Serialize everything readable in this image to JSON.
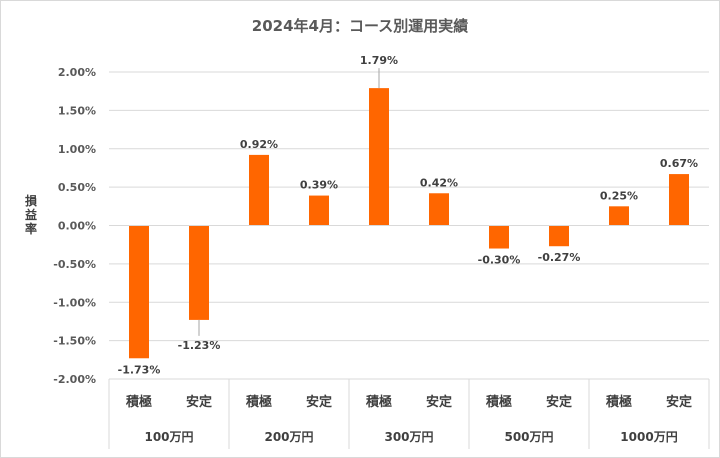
{
  "chart_data": {
    "type": "bar",
    "title": "2024年4月：コース別運用実績",
    "ylabel": "損益率",
    "ylim": [
      -2.0,
      2.0
    ],
    "ytick_step": 0.5,
    "yticks": [
      "2.00%",
      "1.50%",
      "1.00%",
      "0.50%",
      "0.00%",
      "-0.50%",
      "-1.00%",
      "-1.50%",
      "-2.00%"
    ],
    "grid": true,
    "legend": "none",
    "bar_color": "#ff6600",
    "groups": [
      {
        "label": "100万円",
        "categories": [
          {
            "label": "積極",
            "value": -1.73,
            "display": "-1.73%"
          },
          {
            "label": "安定",
            "value": -1.23,
            "display": "-1.23%"
          }
        ]
      },
      {
        "label": "200万円",
        "categories": [
          {
            "label": "積極",
            "value": 0.92,
            "display": "0.92%"
          },
          {
            "label": "安定",
            "value": 0.39,
            "display": "0.39%"
          }
        ]
      },
      {
        "label": "300万円",
        "categories": [
          {
            "label": "積極",
            "value": 1.79,
            "display": "1.79%"
          },
          {
            "label": "安定",
            "value": 0.42,
            "display": "0.42%"
          }
        ]
      },
      {
        "label": "500万円",
        "categories": [
          {
            "label": "積極",
            "value": -0.3,
            "display": "-0.30%"
          },
          {
            "label": "安定",
            "value": -0.27,
            "display": "-0.27%"
          }
        ]
      },
      {
        "label": "1000万円",
        "categories": [
          {
            "label": "積極",
            "value": 0.25,
            "display": "0.25%"
          },
          {
            "label": "安定",
            "value": 0.67,
            "display": "0.67%"
          }
        ]
      }
    ]
  }
}
